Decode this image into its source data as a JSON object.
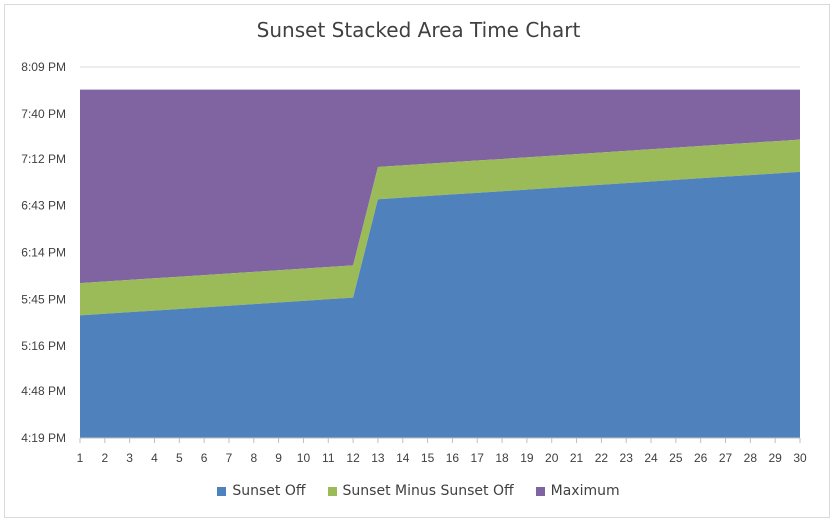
{
  "chart_data": {
    "type": "area",
    "stacked": true,
    "title": "Sunset Stacked Area Time Chart",
    "x": [
      1,
      2,
      3,
      4,
      5,
      6,
      7,
      8,
      9,
      10,
      11,
      12,
      13,
      14,
      15,
      16,
      17,
      18,
      19,
      20,
      21,
      22,
      23,
      24,
      25,
      26,
      27,
      28,
      29,
      30
    ],
    "y_axis_ticks": [
      "4:19 PM",
      "4:48 PM",
      "5:16 PM",
      "5:45 PM",
      "6:14 PM",
      "6:43 PM",
      "7:12 PM",
      "7:40 PM",
      "8:09 PM"
    ],
    "ylim": [
      "4:19 PM",
      "8:09 PM"
    ],
    "series": [
      {
        "name": "Sunset Off",
        "color": "#4f81bd",
        "values": [
          "5:35 PM",
          "5:36 PM",
          "5:37 PM",
          "5:38 PM",
          "5:39 PM",
          "5:40 PM",
          "5:41 PM",
          "5:42 PM",
          "5:43 PM",
          "5:44 PM",
          "5:45 PM",
          "5:46 PM",
          "6:47 PM",
          "6:48 PM",
          "6:49 PM",
          "6:50 PM",
          "6:51 PM",
          "6:52 PM",
          "6:53 PM",
          "6:54 PM",
          "6:55 PM",
          "6:56 PM",
          "6:57 PM",
          "6:58 PM",
          "6:59 PM",
          "7:00 PM",
          "7:01 PM",
          "7:02 PM",
          "7:03 PM",
          "7:04 PM"
        ]
      },
      {
        "name": "Sunset Minus Sunset Off",
        "color": "#9bbb59",
        "values": [
          "0:20",
          "0:20",
          "0:20",
          "0:20",
          "0:20",
          "0:20",
          "0:20",
          "0:20",
          "0:20",
          "0:20",
          "0:20",
          "0:20",
          "0:20",
          "0:20",
          "0:20",
          "0:20",
          "0:20",
          "0:20",
          "0:20",
          "0:20",
          "0:20",
          "0:20",
          "0:20",
          "0:20",
          "0:20",
          "0:20",
          "0:20",
          "0:20",
          "0:20",
          "0:20"
        ]
      },
      {
        "name": "Maximum",
        "label_note": "fills to maximum",
        "color": "#8064a2",
        "total": "7:55 PM"
      }
    ],
    "legend_position": "bottom"
  }
}
